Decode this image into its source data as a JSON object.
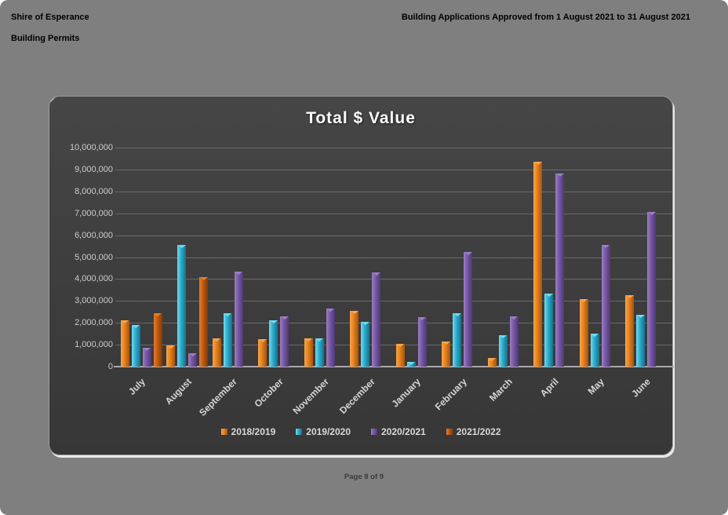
{
  "page": {
    "background": "#7f7f7f"
  },
  "header": {
    "org": "Shire of Esperance",
    "section": "Building Permits",
    "report_title": "Building Applications Approved from 1 August 2021 to 31 August 2021"
  },
  "footer": {
    "page_label": "Page 8 of 9"
  },
  "chart_data": {
    "type": "bar",
    "title": "Total $ Value",
    "categories": [
      "July",
      "August",
      "September",
      "October",
      "November",
      "December",
      "January",
      "February",
      "March",
      "April",
      "May",
      "June"
    ],
    "series": [
      {
        "name": "2018/2019",
        "color": "#e8821e",
        "light": "#faa64a",
        "dark": "#a4540e",
        "values": [
          2100000,
          950000,
          1300000,
          1250000,
          1300000,
          2550000,
          1050000,
          1150000,
          400000,
          9350000,
          3100000,
          3250000
        ]
      },
      {
        "name": "2019/2020",
        "color": "#2caece",
        "light": "#74daee",
        "dark": "#17708c",
        "values": [
          1900000,
          5550000,
          2450000,
          2100000,
          1300000,
          2050000,
          200000,
          2450000,
          1450000,
          3350000,
          1500000,
          2350000
        ]
      },
      {
        "name": "2020/2021",
        "color": "#7759a5",
        "light": "#9c7fc4",
        "dark": "#4e3875",
        "values": [
          850000,
          600000,
          4350000,
          2300000,
          2650000,
          4300000,
          2250000,
          5250000,
          2300000,
          8800000,
          5550000,
          7050000
        ]
      },
      {
        "name": "2021/2022",
        "color": "#c45a10",
        "light": "#e37f2b",
        "dark": "#7e3a08",
        "values": [
          2450000,
          4100000,
          null,
          null,
          null,
          null,
          null,
          null,
          null,
          null,
          null,
          null
        ]
      }
    ],
    "ylim": [
      0,
      10000000
    ],
    "ytick_step": 1000000,
    "ytick_labels": [
      "0",
      "1,000,000",
      "2,000,000",
      "3,000,000",
      "4,000,000",
      "5,000,000",
      "6,000,000",
      "7,000,000",
      "8,000,000",
      "9,000,000",
      "10,000,000"
    ],
    "grid": true,
    "legend_position": "bottom",
    "background": "#3d3d3d"
  }
}
